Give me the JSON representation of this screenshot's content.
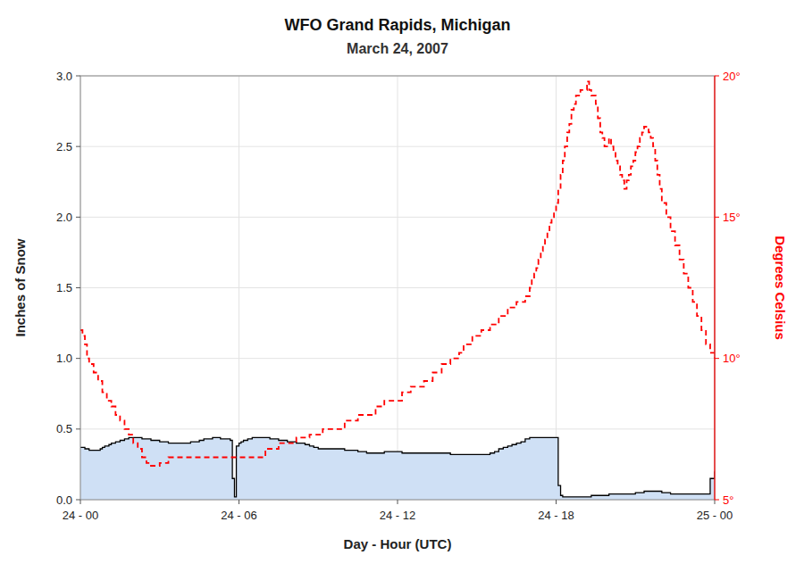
{
  "chart_data": {
    "type": "step",
    "title": "WFO Grand Rapids, Michigan",
    "subtitle": "March 24, 2007",
    "xlabel": "Day - Hour (UTC)",
    "ylabel": "Inches of Snow",
    "y2label": "Degrees Celsius",
    "grid": true,
    "xlim": [
      0,
      24
    ],
    "xticks": [
      {
        "value": 0,
        "label": "24 - 00"
      },
      {
        "value": 6,
        "label": "24 - 06"
      },
      {
        "value": 12,
        "label": "24 - 12"
      },
      {
        "value": 18,
        "label": "24 - 18"
      },
      {
        "value": 24,
        "label": "25 - 00"
      }
    ],
    "ylim": [
      0.0,
      3.0
    ],
    "yticks": [
      {
        "value": 0.0,
        "label": "0.0"
      },
      0.5,
      {
        "value": 1.0,
        "label": "1.0"
      },
      1.5,
      {
        "value": 2.0,
        "label": "2.0"
      },
      2.5,
      {
        "value": 3.0,
        "label": "3.0"
      }
    ],
    "y2lim": [
      5.0,
      20.0
    ],
    "y2ticks": [
      {
        "value": 5,
        "label": "5°"
      },
      {
        "value": 10,
        "label": "10°"
      },
      {
        "value": 15,
        "label": "15°"
      },
      {
        "value": 20,
        "label": "20°"
      }
    ],
    "series": [
      {
        "type": "area",
        "color": "#000000",
        "x": [
          0.0,
          0.08,
          0.17,
          0.25,
          0.33,
          0.42,
          0.5,
          0.58,
          0.67,
          0.75,
          0.83,
          0.92,
          1.0,
          1.08,
          1.17,
          1.25,
          1.33,
          1.42,
          1.5,
          1.58,
          1.67,
          1.75,
          1.83,
          1.92,
          2.0,
          2.17,
          2.33,
          2.5,
          2.67,
          2.83,
          3.0,
          3.17,
          3.33,
          3.5,
          3.67,
          3.83,
          4.0,
          4.17,
          4.33,
          4.5,
          4.67,
          4.83,
          5.0,
          5.1,
          5.2,
          5.3,
          5.5,
          5.67,
          5.75,
          5.83,
          5.9,
          6.0,
          6.08,
          6.17,
          6.25,
          6.33,
          6.42,
          6.5,
          6.67,
          6.83,
          7.0,
          7.17,
          7.33,
          7.5,
          7.67,
          7.83,
          8.0,
          8.17,
          8.33,
          8.5,
          8.67,
          8.83,
          9.0,
          9.17,
          9.33,
          9.5,
          9.67,
          9.83,
          10.0,
          10.17,
          10.33,
          10.5,
          10.67,
          10.83,
          11.0,
          11.17,
          11.33,
          11.5,
          11.67,
          11.83,
          12.0,
          12.17,
          12.33,
          12.5,
          12.67,
          12.83,
          13.0,
          13.17,
          13.33,
          13.5,
          13.67,
          13.83,
          14.0,
          14.17,
          14.33,
          14.5,
          14.67,
          14.83,
          15.0,
          15.17,
          15.33,
          15.5,
          15.67,
          15.83,
          16.0,
          16.17,
          16.33,
          16.5,
          16.67,
          16.83,
          17.0,
          17.08,
          17.17,
          17.25,
          17.33,
          17.42,
          17.5,
          17.58,
          17.67,
          17.75,
          17.83,
          17.92,
          18.0,
          18.08,
          18.17,
          18.25,
          18.33,
          18.42,
          18.5,
          18.67,
          18.83,
          19.0,
          19.17,
          19.33,
          19.5,
          19.67,
          19.83,
          20.0,
          20.17,
          20.33,
          20.5,
          20.67,
          20.83,
          21.0,
          21.17,
          21.33,
          21.5,
          21.67,
          21.83,
          22.0,
          22.17,
          22.33,
          22.5,
          22.67,
          22.83,
          23.0,
          23.17,
          23.33,
          23.5,
          23.67,
          23.83,
          24.0
        ],
        "values": [
          0.37,
          0.37,
          0.36,
          0.36,
          0.35,
          0.35,
          0.35,
          0.35,
          0.35,
          0.36,
          0.37,
          0.38,
          0.38,
          0.39,
          0.4,
          0.4,
          0.41,
          0.41,
          0.42,
          0.42,
          0.43,
          0.43,
          0.44,
          0.44,
          0.44,
          0.44,
          0.43,
          0.43,
          0.42,
          0.42,
          0.41,
          0.41,
          0.4,
          0.4,
          0.4,
          0.4,
          0.4,
          0.41,
          0.41,
          0.42,
          0.43,
          0.43,
          0.44,
          0.44,
          0.44,
          0.43,
          0.43,
          0.42,
          0.15,
          0.02,
          0.38,
          0.4,
          0.41,
          0.42,
          0.42,
          0.43,
          0.43,
          0.44,
          0.44,
          0.44,
          0.44,
          0.43,
          0.43,
          0.42,
          0.42,
          0.41,
          0.41,
          0.4,
          0.4,
          0.39,
          0.38,
          0.37,
          0.36,
          0.36,
          0.36,
          0.36,
          0.36,
          0.36,
          0.35,
          0.35,
          0.35,
          0.34,
          0.34,
          0.33,
          0.33,
          0.33,
          0.33,
          0.34,
          0.34,
          0.34,
          0.34,
          0.33,
          0.33,
          0.33,
          0.33,
          0.33,
          0.33,
          0.33,
          0.33,
          0.33,
          0.33,
          0.33,
          0.32,
          0.32,
          0.32,
          0.32,
          0.32,
          0.32,
          0.32,
          0.32,
          0.32,
          0.33,
          0.34,
          0.36,
          0.37,
          0.38,
          0.39,
          0.4,
          0.41,
          0.43,
          0.44,
          0.44,
          0.44,
          0.44,
          0.44,
          0.44,
          0.44,
          0.44,
          0.44,
          0.44,
          0.44,
          0.44,
          0.44,
          0.1,
          0.03,
          0.02,
          0.02,
          0.02,
          0.02,
          0.02,
          0.02,
          0.02,
          0.02,
          0.03,
          0.03,
          0.03,
          0.03,
          0.04,
          0.04,
          0.04,
          0.04,
          0.04,
          0.04,
          0.05,
          0.05,
          0.06,
          0.06,
          0.06,
          0.06,
          0.05,
          0.05,
          0.04,
          0.04,
          0.04,
          0.04,
          0.04,
          0.04,
          0.04,
          0.04,
          0.04,
          0.15,
          0.2
        ]
      },
      {
        "type": "line",
        "axis": "y2",
        "color": "#FF0000",
        "line_style": "dashed",
        "x": [
          0.0,
          0.08,
          0.17,
          0.25,
          0.33,
          0.5,
          0.67,
          0.83,
          1.0,
          1.17,
          1.33,
          1.5,
          1.67,
          1.83,
          2.0,
          2.17,
          2.33,
          2.5,
          2.67,
          2.83,
          3.0,
          3.17,
          3.33,
          3.5,
          3.67,
          3.83,
          4.0,
          4.17,
          4.33,
          4.5,
          4.67,
          4.83,
          5.0,
          5.17,
          5.33,
          5.5,
          5.67,
          5.83,
          6.0,
          6.17,
          6.33,
          6.5,
          6.67,
          6.83,
          7.0,
          7.17,
          7.33,
          7.5,
          7.67,
          7.83,
          8.0,
          8.17,
          8.33,
          8.5,
          8.67,
          8.83,
          9.0,
          9.17,
          9.33,
          9.5,
          9.67,
          9.83,
          10.0,
          10.17,
          10.33,
          10.5,
          10.67,
          10.83,
          11.0,
          11.17,
          11.33,
          11.5,
          11.67,
          11.83,
          12.0,
          12.17,
          12.33,
          12.5,
          12.67,
          12.83,
          13.0,
          13.17,
          13.33,
          13.5,
          13.67,
          13.83,
          14.0,
          14.17,
          14.33,
          14.5,
          14.67,
          14.83,
          15.0,
          15.17,
          15.33,
          15.5,
          15.67,
          15.83,
          16.0,
          16.17,
          16.33,
          16.5,
          16.67,
          16.83,
          17.0,
          17.08,
          17.17,
          17.25,
          17.33,
          17.42,
          17.5,
          17.58,
          17.67,
          17.75,
          17.83,
          17.92,
          18.0,
          18.08,
          18.17,
          18.25,
          18.33,
          18.42,
          18.5,
          18.58,
          18.67,
          18.75,
          18.83,
          18.92,
          19.0,
          19.08,
          19.17,
          19.25,
          19.33,
          19.42,
          19.5,
          19.58,
          19.67,
          19.75,
          19.83,
          19.92,
          20.0,
          20.08,
          20.17,
          20.25,
          20.33,
          20.42,
          20.5,
          20.58,
          20.67,
          20.75,
          20.83,
          20.92,
          21.0,
          21.08,
          21.17,
          21.25,
          21.33,
          21.42,
          21.5,
          21.58,
          21.67,
          21.75,
          21.83,
          21.92,
          22.0,
          22.17,
          22.33,
          22.5,
          22.67,
          22.83,
          23.0,
          23.17,
          23.33,
          23.5,
          23.67,
          23.83,
          24.0
        ],
        "values": [
          11.0,
          10.8,
          10.5,
          10.0,
          9.8,
          9.5,
          9.2,
          8.8,
          8.5,
          8.3,
          8.0,
          7.8,
          7.5,
          7.3,
          7.0,
          6.8,
          6.5,
          6.3,
          6.2,
          6.2,
          6.3,
          6.3,
          6.5,
          6.5,
          6.5,
          6.5,
          6.5,
          6.5,
          6.5,
          6.5,
          6.5,
          6.5,
          6.5,
          6.5,
          6.5,
          6.5,
          6.5,
          6.5,
          6.5,
          6.5,
          6.5,
          6.5,
          6.5,
          6.5,
          6.8,
          6.8,
          6.8,
          7.0,
          7.0,
          7.0,
          7.0,
          7.2,
          7.2,
          7.2,
          7.3,
          7.3,
          7.3,
          7.5,
          7.5,
          7.5,
          7.5,
          7.5,
          7.8,
          7.8,
          7.8,
          8.0,
          8.0,
          8.0,
          8.0,
          8.3,
          8.3,
          8.5,
          8.5,
          8.5,
          8.5,
          8.8,
          8.8,
          9.0,
          9.0,
          9.0,
          9.2,
          9.2,
          9.5,
          9.5,
          9.8,
          9.8,
          10.0,
          10.0,
          10.2,
          10.5,
          10.5,
          10.8,
          10.8,
          11.0,
          11.0,
          11.2,
          11.2,
          11.5,
          11.5,
          11.8,
          11.8,
          12.0,
          12.0,
          12.2,
          12.5,
          12.8,
          13.0,
          13.2,
          13.5,
          13.8,
          14.0,
          14.2,
          14.5,
          14.8,
          15.0,
          15.2,
          15.5,
          16.0,
          16.5,
          17.0,
          17.5,
          18.0,
          18.3,
          18.8,
          19.0,
          19.3,
          19.3,
          19.5,
          19.5,
          19.5,
          19.8,
          19.5,
          19.3,
          19.3,
          19.0,
          18.5,
          18.0,
          17.8,
          17.5,
          17.5,
          17.8,
          17.5,
          17.3,
          17.0,
          16.8,
          16.5,
          16.3,
          16.0,
          16.3,
          16.5,
          16.8,
          17.0,
          17.3,
          17.5,
          17.8,
          18.0,
          18.2,
          18.2,
          18.0,
          17.8,
          17.5,
          17.0,
          16.5,
          16.0,
          15.5,
          15.0,
          14.5,
          14.0,
          13.5,
          13.0,
          12.5,
          12.0,
          11.5,
          11.0,
          10.5,
          10.2,
          10.0
        ]
      }
    ]
  }
}
